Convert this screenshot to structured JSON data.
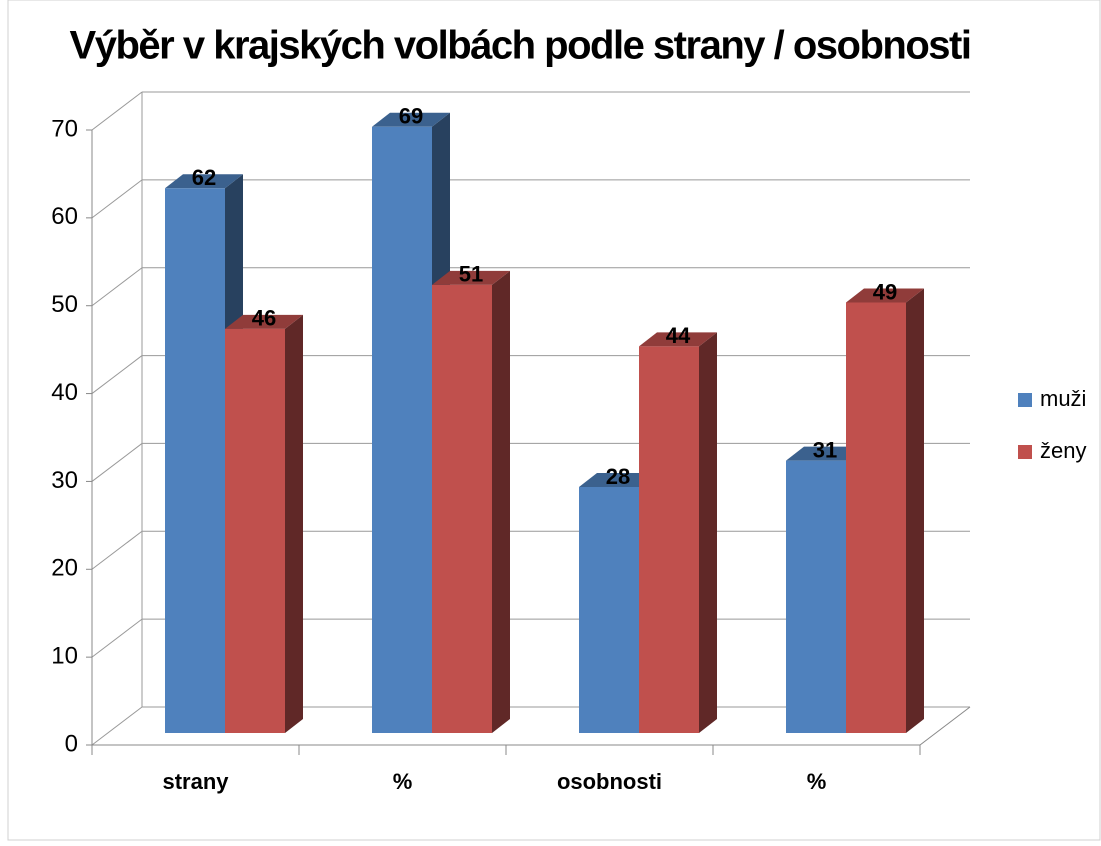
{
  "chart_data": {
    "type": "bar3d",
    "title": "Výběr v krajských volbách podle strany /  osobnosti",
    "categories": [
      "strany",
      "%",
      "osobnosti",
      "%"
    ],
    "series": [
      {
        "name": "muži",
        "color": "#4f81bd",
        "values": [
          62,
          69,
          28,
          31
        ]
      },
      {
        "name": "ženy",
        "color": "#c0504d",
        "values": [
          46,
          51,
          44,
          49
        ]
      }
    ],
    "ylim": [
      0,
      70
    ],
    "yticks": [
      0,
      10,
      20,
      30,
      40,
      50,
      60,
      70
    ],
    "grid": true,
    "legend": "right"
  }
}
